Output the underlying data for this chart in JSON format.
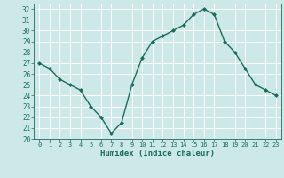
{
  "x": [
    0,
    1,
    2,
    3,
    4,
    5,
    6,
    7,
    8,
    9,
    10,
    11,
    12,
    13,
    14,
    15,
    16,
    17,
    18,
    19,
    20,
    21,
    22,
    23
  ],
  "y": [
    27,
    26.5,
    25.5,
    25,
    24.5,
    23,
    22,
    20.5,
    21.5,
    25,
    27.5,
    29,
    29.5,
    30,
    30.5,
    31.5,
    32,
    31.5,
    29,
    28,
    26.5,
    25,
    24.5,
    24
  ],
  "line_color": "#1a6b5e",
  "marker": "D",
  "markersize": 2.0,
  "bg_color": "#cce8e8",
  "grid_color": "#ffffff",
  "tick_color": "#1a6b5e",
  "label_color": "#1a6b5e",
  "xlabel": "Humidex (Indice chaleur)",
  "ylim": [
    20,
    32.5
  ],
  "yticks": [
    20,
    21,
    22,
    23,
    24,
    25,
    26,
    27,
    28,
    29,
    30,
    31,
    32
  ],
  "xticks": [
    0,
    1,
    2,
    3,
    4,
    5,
    6,
    7,
    8,
    9,
    10,
    11,
    12,
    13,
    14,
    15,
    16,
    17,
    18,
    19,
    20,
    21,
    22,
    23
  ]
}
